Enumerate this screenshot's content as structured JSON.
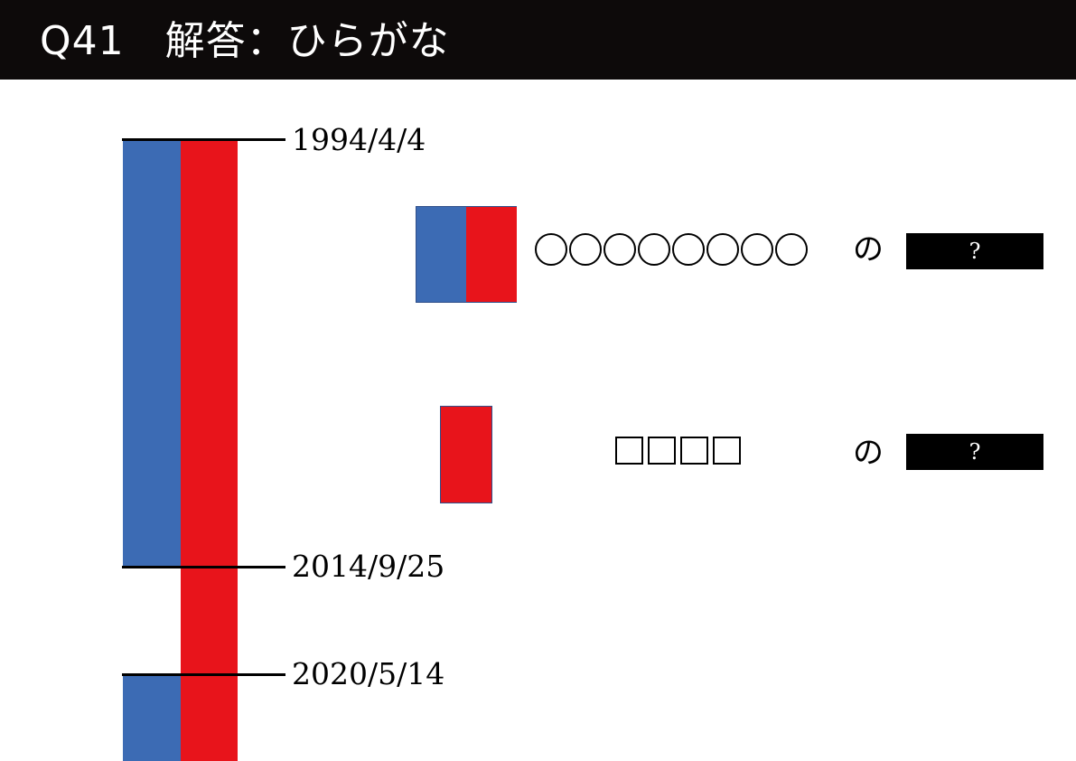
{
  "header": {
    "title": "Q41　解答：ひらがな"
  },
  "timeline": {
    "dates": [
      "1994/4/4",
      "2014/9/25",
      "2020/5/14"
    ]
  },
  "legend": {
    "row1": {
      "circles": [
        "◯",
        "◯",
        "◯",
        "◯",
        "◯",
        "◯",
        "◯",
        "◯"
      ],
      "particle": "の",
      "answer": "?"
    },
    "row2": {
      "squares": [
        "□",
        "□",
        "□",
        "□"
      ],
      "particle": "の",
      "answer": "?"
    }
  },
  "colors": {
    "blue": "#3c6bb4",
    "red": "#e8141b",
    "header_bg": "#0d0a0a"
  }
}
